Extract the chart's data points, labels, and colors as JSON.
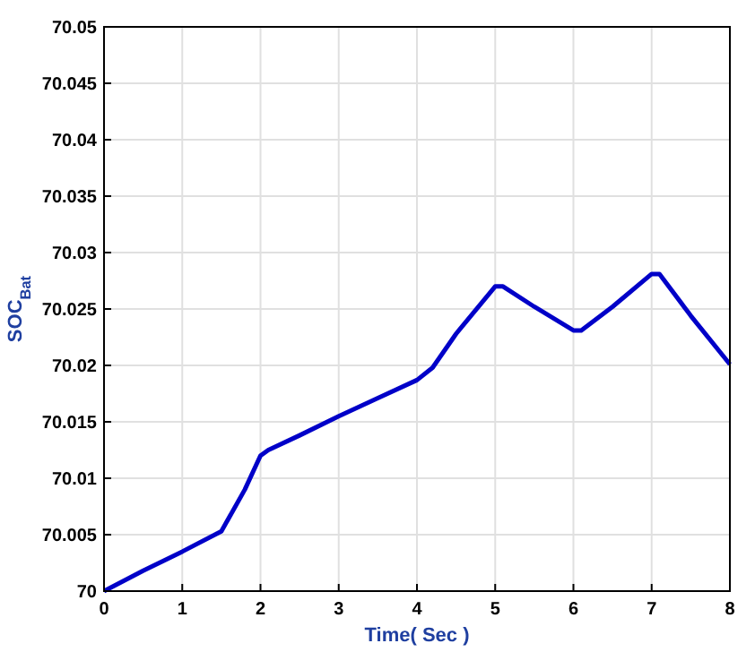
{
  "chart_data": {
    "type": "line",
    "xlabel": "Time( Sec )",
    "ylabel": "SOC$_{Bat}$",
    "x": [
      0,
      0.5,
      1,
      1.5,
      1.8,
      2,
      2.1,
      2.5,
      3,
      3.5,
      4,
      4.2,
      4.5,
      5,
      5.1,
      5.5,
      6,
      6.1,
      6.5,
      7,
      7.1,
      7.5,
      8
    ],
    "series": [
      {
        "color": "#0000c8",
        "values": [
          70,
          70.0018,
          70.0035,
          70.0053,
          70.009,
          70.012,
          70.0125,
          70.0138,
          70.0155,
          70.0171,
          70.0187,
          70.0198,
          70.0228,
          70.027,
          70.027,
          70.0252,
          70.0231,
          70.0231,
          70.0252,
          70.0281,
          70.0281,
          70.0244,
          70.0201
        ]
      }
    ],
    "xlim": [
      0,
      8
    ],
    "xticks": [
      0,
      1,
      2,
      3,
      4,
      5,
      6,
      7,
      8
    ],
    "ylim": [
      70,
      70.05
    ],
    "yticks": [
      70,
      70.005,
      70.01,
      70.015,
      70.02,
      70.025,
      70.03,
      70.035,
      70.04,
      70.045,
      70.05
    ],
    "grid": true,
    "marker": "none",
    "line_style": "solid"
  }
}
